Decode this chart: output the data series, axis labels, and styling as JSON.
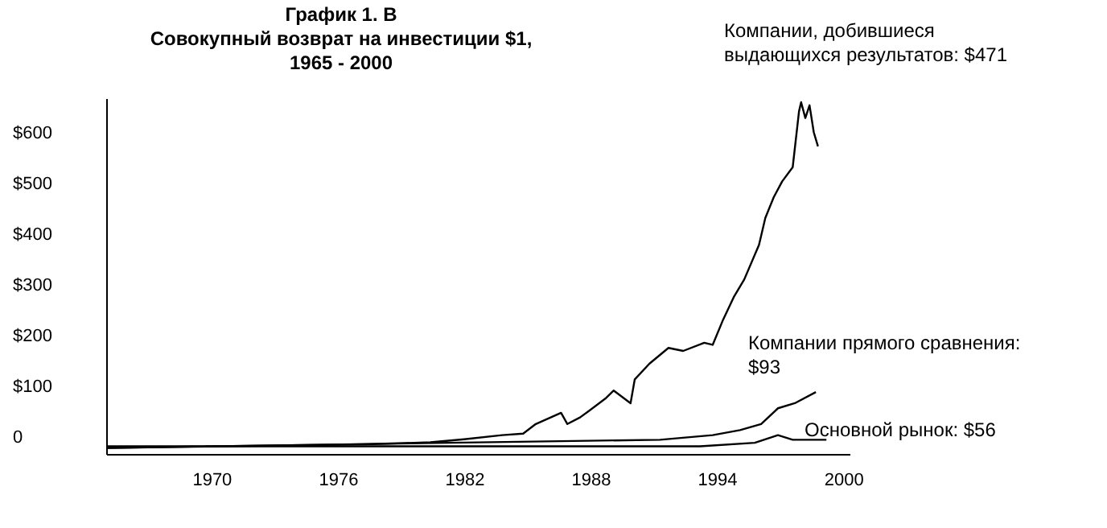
{
  "chart_data": {
    "type": "line",
    "title": [
      "График 1. В",
      "Совокупный возврат на инвестиции $1,",
      "1965 - 2000"
    ],
    "annotations": [
      "Компании, добившиеся\nвыдающихся результатов: $471",
      "Компании прямого сравнения:\n$93",
      "Основной рынок: $56"
    ],
    "xlim": [
      1965,
      2000.3
    ],
    "xticks": [
      1970,
      1976,
      1982,
      1988,
      1994,
      2000
    ],
    "ylim": [
      -31,
      670
    ],
    "yticks": [
      {
        "value": 0,
        "label": "0"
      },
      {
        "value": 100,
        "label": "$100"
      },
      {
        "value": 200,
        "label": "$200"
      },
      {
        "value": 300,
        "label": "$300"
      },
      {
        "value": 400,
        "label": "$400"
      },
      {
        "value": 500,
        "label": "$500"
      },
      {
        "value": 600,
        "label": "$600"
      }
    ],
    "grid": false,
    "line_style": "solid",
    "series": [
      {
        "color": "#000000",
        "x": [
          1965,
          1977.3,
          1980.4,
          1982,
          1983.8,
          1984.8,
          1985.4,
          1986.6,
          1986.9,
          1987.5,
          1987.9,
          1988.7,
          1989.1,
          1989.9,
          1990.1,
          1990.8,
          1991.7,
          1992.4,
          1993.4,
          1993.8,
          1994.3,
          1994.8,
          1995.3,
          1996,
          1996.3,
          1996.7,
          1997.1,
          1997.6,
          1997.9,
          1998,
          1998.2,
          1998.4,
          1998.6,
          1998.8
        ],
        "values": [
          -19,
          -12,
          -8,
          -2,
          6,
          9,
          28,
          50,
          28,
          41,
          53,
          78,
          94,
          69,
          116,
          147,
          178,
          172,
          188,
          184,
          234,
          278,
          313,
          381,
          434,
          475,
          506,
          534,
          644,
          662,
          631,
          656,
          603,
          575
        ]
      },
      {
        "color": "#000000",
        "x": [
          1965,
          1991.3,
          1993.8,
          1995.1,
          1996.1,
          1996.9,
          1997.7,
          1998.7
        ],
        "values": [
          -19,
          -3,
          6,
          16,
          28,
          59,
          69,
          91
        ]
      },
      {
        "color": "#000000",
        "x": [
          1965,
          1993.2,
          1995.8,
          1996.9,
          1997.6,
          1999.2
        ],
        "values": [
          -16,
          -16,
          -9,
          6,
          -3,
          -3
        ]
      }
    ]
  }
}
